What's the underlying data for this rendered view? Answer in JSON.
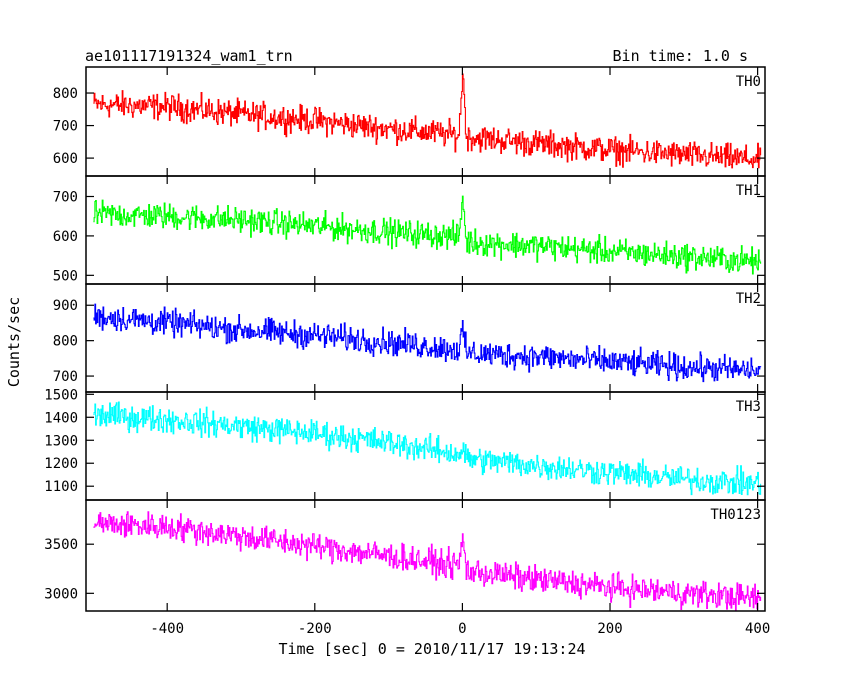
{
  "chart_data": {
    "type": "line",
    "title_left": "ae101117191324_wam1_trn",
    "title_right": "Bin time: 1.0 s",
    "xlabel": "Time [sec] 0 = 2010/11/17 19:13:24",
    "ylabel": "Counts/sec",
    "xlim": [
      -510,
      410
    ],
    "x_ticks": [
      -400,
      -200,
      0,
      200,
      400
    ],
    "panels": [
      {
        "name": "TH0",
        "color": "#ff0000",
        "ylim": [
          545,
          880
        ],
        "y_ticks": [
          600,
          700,
          800
        ],
        "x": [
          -500,
          -400,
          -300,
          -200,
          -100,
          -5,
          0,
          5,
          100,
          200,
          300,
          400
        ],
        "values": [
          765,
          758,
          735,
          715,
          690,
          670,
          870,
          665,
          645,
          625,
          610,
          595
        ]
      },
      {
        "name": "TH1",
        "color": "#00ff00",
        "ylim": [
          478,
          752
        ],
        "y_ticks": [
          500,
          600,
          700
        ],
        "x": [
          -500,
          -400,
          -300,
          -200,
          -100,
          -5,
          0,
          5,
          100,
          200,
          300,
          400
        ],
        "values": [
          655,
          650,
          640,
          625,
          610,
          598,
          700,
          585,
          575,
          560,
          548,
          535
        ]
      },
      {
        "name": "TH2",
        "color": "#0000ff",
        "ylim": [
          655,
          960
        ],
        "y_ticks": [
          700,
          800,
          900
        ],
        "x": [
          -500,
          -400,
          -300,
          -200,
          -100,
          -5,
          0,
          5,
          100,
          200,
          300,
          400
        ],
        "values": [
          870,
          850,
          830,
          815,
          795,
          775,
          830,
          765,
          755,
          740,
          725,
          715
        ]
      },
      {
        "name": "TH3",
        "color": "#00ffff",
        "ylim": [
          1040,
          1510
        ],
        "y_ticks": [
          1100,
          1200,
          1300,
          1400,
          1500
        ],
        "x": [
          -500,
          -400,
          -300,
          -200,
          -100,
          -5,
          0,
          5,
          100,
          200,
          300,
          400
        ],
        "values": [
          1410,
          1390,
          1360,
          1330,
          1290,
          1240,
          1260,
          1220,
          1190,
          1160,
          1130,
          1110
        ]
      },
      {
        "name": "TH0123",
        "color": "#ff00ff",
        "ylim": [
          2820,
          3950
        ],
        "y_ticks": [
          3000,
          3500
        ],
        "x": [
          -500,
          -400,
          -300,
          -200,
          -100,
          -5,
          0,
          5,
          100,
          200,
          300,
          400
        ],
        "values": [
          3710,
          3680,
          3580,
          3480,
          3380,
          3280,
          3580,
          3230,
          3140,
          3060,
          3000,
          2950
        ]
      }
    ]
  }
}
